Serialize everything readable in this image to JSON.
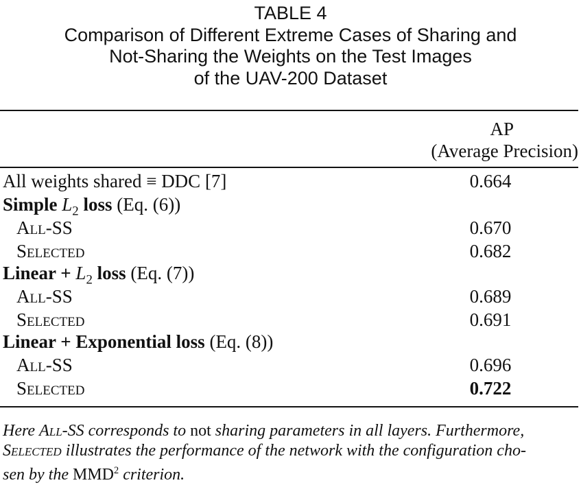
{
  "caption": {
    "number": "TABLE 4",
    "line1": "Comparison of Different Extreme Cases of Sharing and",
    "line2": "Not-Sharing the Weights on the Test Images",
    "line3": "of the UAV-200 Dataset"
  },
  "header": {
    "col1": "AP",
    "col2": "(Average Precision)"
  },
  "rows": {
    "r0": {
      "label": "All weights shared ≡ DDC [7]",
      "value": "0.664"
    },
    "g1": {
      "bold_a": "Simple ",
      "italic": "L",
      "sub": "2",
      "bold_b": " loss",
      "ref": " (Eq. (6))"
    },
    "r1": {
      "label": "All-SS",
      "value": "0.670"
    },
    "r2": {
      "label": "Selected",
      "value": "0.682"
    },
    "g2": {
      "bold_a": "Linear + ",
      "italic": "L",
      "sub": "2",
      "bold_b": " loss",
      "ref": " (Eq. (7))"
    },
    "r3": {
      "label": "All-SS",
      "value": "0.689"
    },
    "r4": {
      "label": "Selected",
      "value": "0.691"
    },
    "g3": {
      "bold_a": "Linear + Exponential loss",
      "ref": " (Eq. (8))"
    },
    "r5": {
      "label": "All-SS",
      "value": "0.696"
    },
    "r6": {
      "label": "Selected",
      "value": "0.722"
    }
  },
  "note": {
    "p1": "Here ",
    "allss": "All-SS",
    "p2": " corresponds to ",
    "not": "not",
    "p3": " sharing parameters in all layers. Furthermore,",
    "selected": "Selected",
    "p4": " illustrates the performance of the network with the configuration cho-",
    "p5": "sen by the ",
    "mmd": "MMD",
    "sup": "2",
    "p6": " criterion."
  }
}
